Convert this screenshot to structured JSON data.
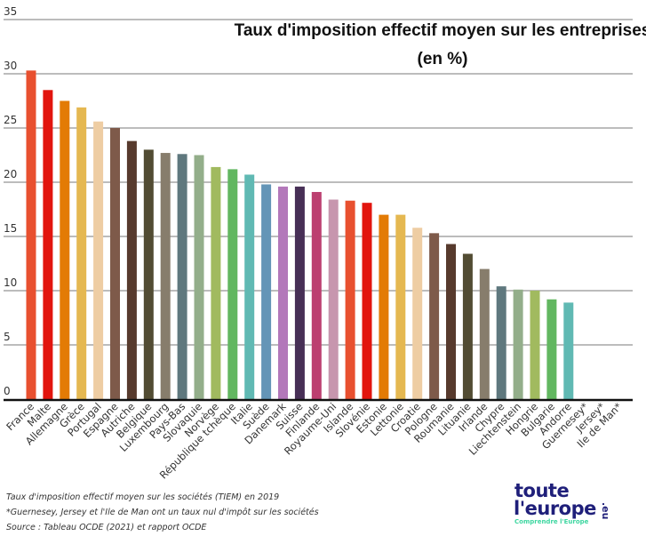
{
  "chart_data": {
    "type": "bar",
    "title": "Taux d'imposition effectif moyen sur les entreprises",
    "subtitle": "(en %)",
    "xlabel": "",
    "ylabel": "",
    "ylim": [
      0,
      35
    ],
    "yticks": [
      0,
      5,
      10,
      15,
      20,
      25,
      30,
      35
    ],
    "grid": true,
    "legend": "none",
    "categories": [
      "France",
      "Malte",
      "Allemagne",
      "Grèce",
      "Portugal",
      "Espagne",
      "Autriche",
      "Belgique",
      "Luxembourg",
      "Pays-Bas",
      "Slovaquie",
      "Norvège",
      "République tchèque",
      "Italie",
      "Suède",
      "Danemark",
      "Suisse",
      "Finlande",
      "Royaume-Uni",
      "Islande",
      "Slovénie",
      "Estonie",
      "Lettonie",
      "Croatie",
      "Pologne",
      "Roumanie",
      "Lituanie",
      "Irlande",
      "Chypre",
      "Liechtenstein",
      "Hongrie",
      "Bulgarie",
      "Andorre",
      "Guernesey*",
      "Jersey*",
      "Ile de Man*"
    ],
    "values": [
      30.3,
      28.5,
      27.5,
      26.9,
      25.6,
      25.0,
      23.8,
      23.0,
      22.7,
      22.6,
      22.5,
      21.4,
      21.2,
      20.7,
      19.8,
      19.6,
      19.6,
      19.1,
      18.4,
      18.3,
      18.1,
      17.0,
      17.0,
      15.8,
      15.3,
      14.3,
      13.4,
      12.0,
      10.4,
      10.1,
      10.0,
      9.2,
      8.9,
      0,
      0,
      0
    ],
    "colors": [
      "#e8502f",
      "#e2150e",
      "#e37b05",
      "#e5b851",
      "#eecda3",
      "#7e5a4a",
      "#573a2d",
      "#524c33",
      "#877d6c",
      "#5f787e",
      "#93ae8a",
      "#a1ba5f",
      "#62b760",
      "#60b9b3",
      "#6495b7",
      "#b378ba",
      "#472f56",
      "#bc3f70",
      "#c796ae",
      "#e8502f",
      "#e2150e",
      "#e37b05",
      "#e5b851",
      "#eecda3",
      "#7e5a4a",
      "#573a2d",
      "#524c33",
      "#877d6c",
      "#5f787e",
      "#93ae8a",
      "#a1ba5f",
      "#62b760",
      "#60b9b3",
      "#ffffff",
      "#ffffff",
      "#ffffff"
    ]
  },
  "notes": {
    "line1": "Taux d'imposition effectif moyen sur les sociétés (TIEM) en 2019",
    "line2": "*Guernesey, Jersey et l'Ile de Man ont un taux nul d'impôt sur les sociétés",
    "line3": "Source : Tableau OCDE (2021) et rapport OCDE"
  },
  "logo": {
    "line1": "toute",
    "line2": "l'europe",
    "suffix": ".eu",
    "tagline": "Comprendre l'Europe"
  }
}
